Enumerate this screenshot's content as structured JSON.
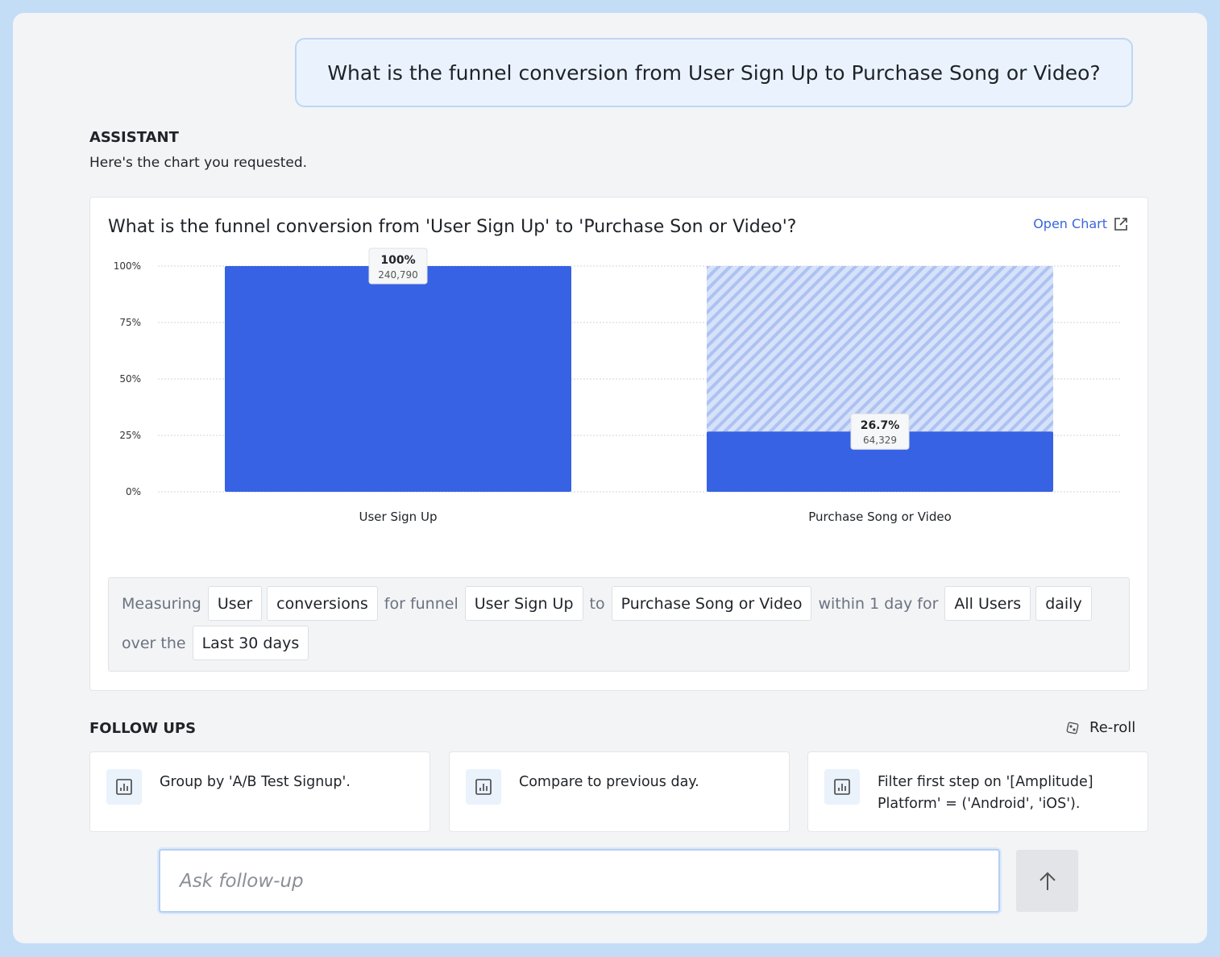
{
  "user_message": "What is the funnel conversion from User Sign Up to Purchase Song or Video?",
  "assistant": {
    "label": "ASSISTANT",
    "text": "Here's the chart you requested."
  },
  "chart_card": {
    "title": "What is the funnel conversion from 'User Sign Up' to 'Purchase Son or Video'?",
    "open_chart": "Open Chart",
    "query": {
      "w1": "Measuring",
      "c1": "User",
      "c2": "conversions",
      "w2": "for funnel",
      "c3": "User Sign Up",
      "w3": "to",
      "c4": "Purchase Song or Video",
      "w4": "within 1 day for",
      "c5": "All Users",
      "c6": "daily",
      "w5": "over the",
      "c7": "Last 30 days"
    }
  },
  "chart_data": {
    "type": "bar",
    "title": "What is the funnel conversion from 'User Sign Up' to 'Purchase Son or Video'?",
    "categories": [
      "User Sign Up",
      "Purchase Song or Video"
    ],
    "values": [
      100,
      26.7
    ],
    "counts": [
      "240,790",
      "64,329"
    ],
    "value_labels": [
      "100%",
      "26.7%"
    ],
    "ylim": [
      0,
      100
    ],
    "yticks": [
      "0%",
      "25%",
      "50%",
      "75%",
      "100%"
    ],
    "grid": true,
    "colors": {
      "bar": "#3662e3",
      "dropoff_hatch": "#c9d7f7"
    }
  },
  "follow_ups": {
    "label": "FOLLOW UPS",
    "reroll": "Re-roll",
    "items": [
      {
        "text": "Group by 'A/B Test Signup'."
      },
      {
        "text": "Compare to previous day."
      },
      {
        "text": "Filter first step on '[Amplitude] Platform' = ('Android', 'iOS')."
      }
    ]
  },
  "input": {
    "placeholder": "Ask follow-up"
  }
}
